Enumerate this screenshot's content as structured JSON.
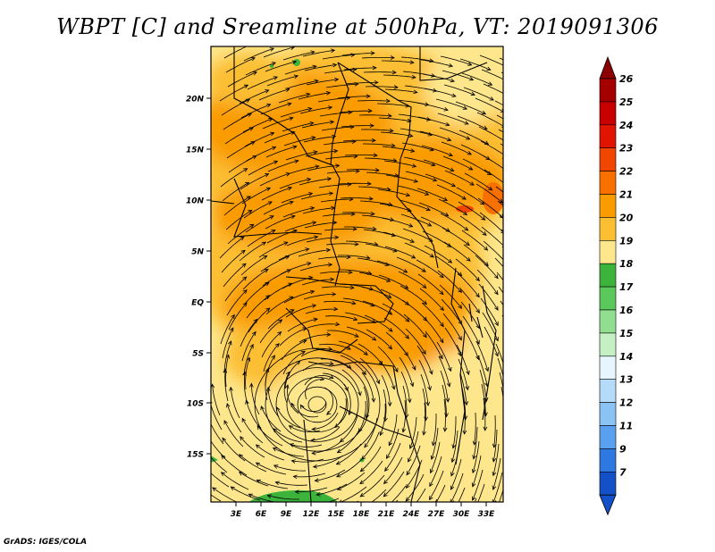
{
  "title": "WBPT [C] and Sreamline at 500hPa, VT: 2019091306",
  "credit": "GrADS: IGES/COLA",
  "map": {
    "lon_labels": [
      "3E",
      "6E",
      "9E",
      "12E",
      "15E",
      "18E",
      "21E",
      "24E",
      "27E",
      "30E",
      "33E"
    ],
    "lat_labels": [
      "20N",
      "15N",
      "10N",
      "5N",
      "EQ",
      "5S",
      "10S",
      "15S"
    ],
    "field_description_hint": "orange field (20-22C) over central Africa, yellow (19-20C) south, green patches (<18C) near south edge; cyclonic circulation near 12E 10S"
  },
  "colorbar": {
    "levels": [
      "26",
      "25",
      "24",
      "23",
      "22",
      "21",
      "20",
      "19",
      "18",
      "17",
      "16",
      "15",
      "14",
      "13",
      "12",
      "11",
      "9",
      "7"
    ],
    "colors": [
      "#a50000",
      "#c80000",
      "#e11400",
      "#f04600",
      "#f77000",
      "#fa9b00",
      "#fcbe32",
      "#fde68c",
      "#3cb43c",
      "#5ac85a",
      "#91de91",
      "#c4f0c4",
      "#e6f5ff",
      "#b4dcfa",
      "#8cc3f5",
      "#5aa0f0",
      "#2d78e1",
      "#1450c8"
    ],
    "top_color": "#8b0000",
    "bottom_color": "#1450c8"
  }
}
